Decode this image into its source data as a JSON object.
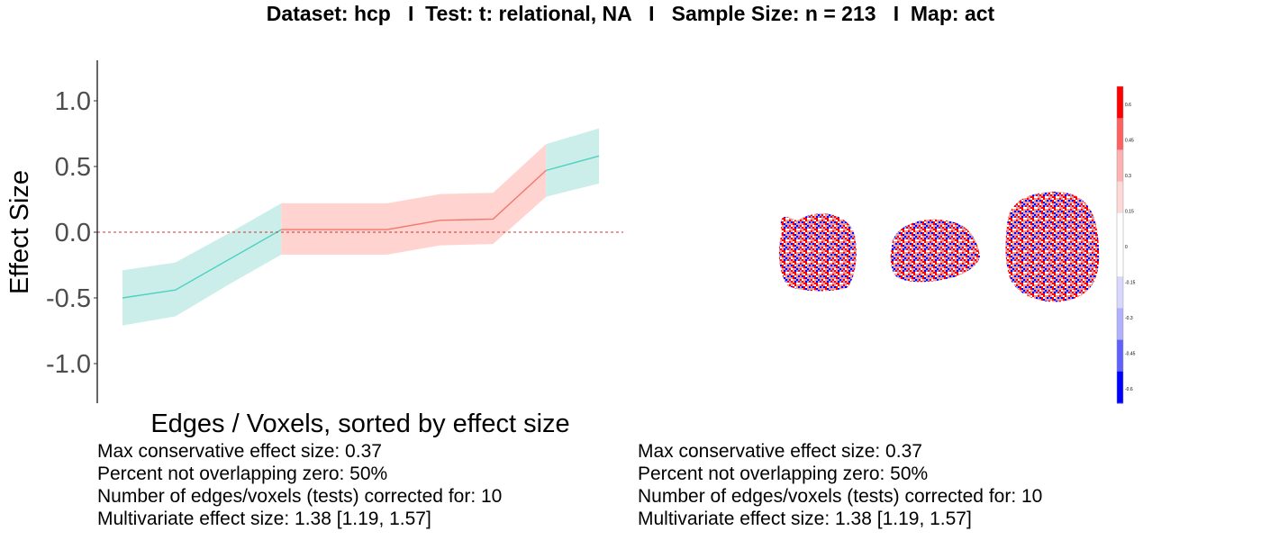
{
  "title": "Dataset: hcp   I  Test: t: relational, NA   I   Sample Size: n = 213   I  Map: act",
  "chart_data": {
    "type": "line",
    "xlabel": "Edges / Voxels, sorted by effect size",
    "ylabel": "Effect Size",
    "ylim": [
      -1.3,
      1.3
    ],
    "yticks": [
      -1.0,
      -0.5,
      0.0,
      0.5,
      1.0
    ],
    "ytick_labels": [
      "-1.0",
      "-0.5",
      "0.0",
      "0.5",
      "1.0"
    ],
    "x": [
      1,
      2,
      3,
      4,
      5,
      6,
      7,
      8,
      9,
      10
    ],
    "y": [
      -0.5,
      -0.44,
      -0.21,
      0.02,
      0.02,
      0.02,
      0.09,
      0.1,
      0.47,
      0.58
    ],
    "lower": [
      -0.71,
      -0.64,
      -0.4,
      -0.17,
      -0.17,
      -0.17,
      -0.1,
      -0.09,
      0.27,
      0.37
    ],
    "upper": [
      -0.29,
      -0.23,
      -0.01,
      0.22,
      0.22,
      0.22,
      0.29,
      0.3,
      0.67,
      0.79
    ],
    "overlaps_zero": [
      false,
      false,
      false,
      true,
      true,
      true,
      true,
      true,
      false,
      false
    ],
    "reference_line": 0.0,
    "colors": {
      "not_overlapping_line": "#4fd1c1",
      "not_overlapping_band": "#cbeeea",
      "overlapping_line": "#f4776b",
      "overlapping_band": "#ffd3d0",
      "reference_line": "#d03030"
    }
  },
  "brain_map": {
    "colorbar_ticks": [
      "0.6",
      "0.45",
      "0.3",
      "0.15",
      "0",
      "-0.15",
      "-0.3",
      "-0.45",
      "-0.6"
    ],
    "colors": {
      "positive": "#ff0000",
      "negative": "#0000ff",
      "neutral": "#ffffff"
    }
  },
  "stats_left": [
    "Max conservative effect size: 0.37",
    "Percent not overlapping zero: 50%",
    "Number of edges/voxels (tests) corrected for: 10",
    "Multivariate effect size: 1.38 [1.19, 1.57]"
  ],
  "stats_right": [
    "Max conservative effect size: 0.37",
    "Percent not overlapping zero: 50%",
    "Number of edges/voxels (tests) corrected for: 10",
    "Multivariate effect size: 1.38 [1.19, 1.57]"
  ]
}
